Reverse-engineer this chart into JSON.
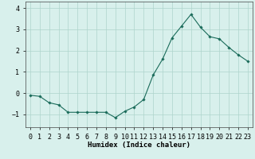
{
  "x": [
    0,
    1,
    2,
    3,
    4,
    5,
    6,
    7,
    8,
    9,
    10,
    11,
    12,
    13,
    14,
    15,
    16,
    17,
    18,
    19,
    20,
    21,
    22,
    23
  ],
  "y": [
    -0.1,
    -0.15,
    -0.45,
    -0.55,
    -0.9,
    -0.9,
    -0.9,
    -0.9,
    -0.9,
    -1.15,
    -0.85,
    -0.65,
    -0.3,
    0.85,
    1.6,
    2.6,
    3.15,
    3.7,
    3.1,
    2.65,
    2.55,
    2.15,
    1.8,
    1.5
  ],
  "line_color": "#1a6b5a",
  "marker": "D",
  "marker_size": 1.8,
  "bg_color": "#d8f0ec",
  "grid_color": "#aed4cc",
  "xlabel": "Humidex (Indice chaleur)",
  "xlim": [
    -0.5,
    23.5
  ],
  "ylim": [
    -1.6,
    4.3
  ],
  "yticks": [
    -1,
    0,
    1,
    2,
    3,
    4
  ],
  "xtick_labels": [
    "0",
    "1",
    "2",
    "3",
    "4",
    "5",
    "6",
    "7",
    "8",
    "9",
    "10",
    "11",
    "12",
    "13",
    "14",
    "15",
    "16",
    "17",
    "18",
    "19",
    "20",
    "21",
    "22",
    "23"
  ],
  "xlabel_fontsize": 6.5,
  "tick_fontsize": 6.0
}
